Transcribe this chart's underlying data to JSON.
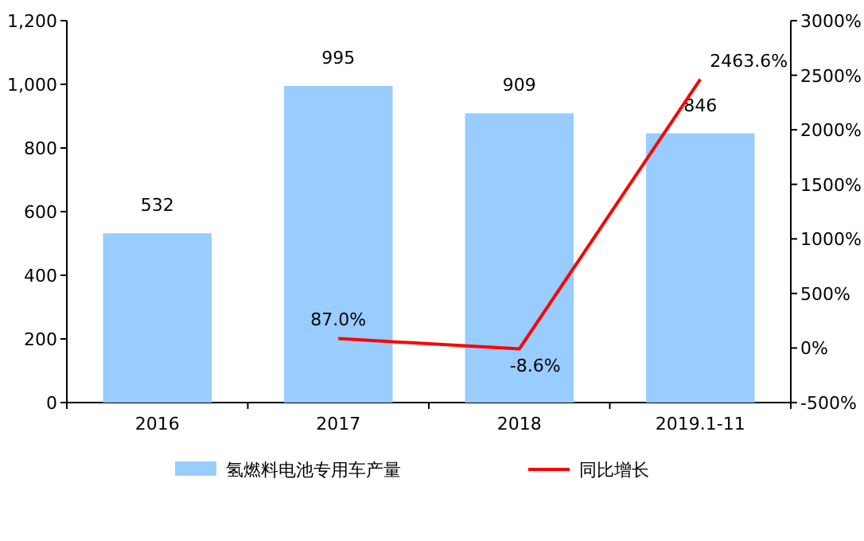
{
  "chart_data": {
    "type": "bar",
    "categories": [
      "2016",
      "2017",
      "2018",
      "2019.1-11"
    ],
    "series": [
      {
        "name": "氢燃料电池专用车产量",
        "color": "#99ccff",
        "values": [
          532,
          995,
          909,
          846
        ],
        "value_labels": [
          "532",
          "995",
          "909",
          "846"
        ]
      },
      {
        "name": "同比增长",
        "type": "line",
        "axis": "y2",
        "color": "#ff0000",
        "values": [
          null,
          87.0,
          -8.6,
          2463.6
        ],
        "value_labels": [
          null,
          "87.0%",
          "-8.6%",
          "2463.6%"
        ]
      }
    ],
    "ylim": [
      0,
      1200
    ],
    "yticks": [
      0,
      200,
      400,
      600,
      800,
      {
        "value": 1000,
        "label": "1,000"
      },
      {
        "value": 1200,
        "label": "1,200"
      }
    ],
    "y2lim": [
      -500,
      3000
    ],
    "y2ticks": [
      {
        "value": -500,
        "label": "-500%"
      },
      {
        "value": 0,
        "label": "0%"
      },
      {
        "value": 500,
        "label": "500%"
      },
      {
        "value": 1000,
        "label": "1000%"
      },
      {
        "value": 1500,
        "label": "1500%"
      },
      {
        "value": 2000,
        "label": "2000%"
      },
      {
        "value": 2500,
        "label": "2500%"
      },
      {
        "value": 3000,
        "label": "3000%"
      }
    ],
    "legend": "bottom"
  }
}
